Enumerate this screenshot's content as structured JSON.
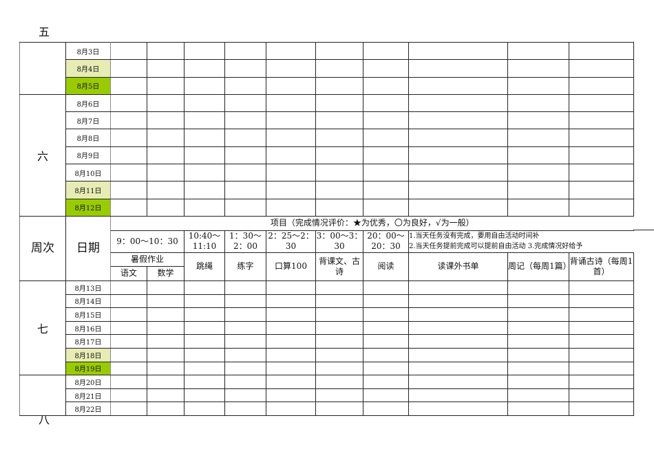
{
  "outside_labels": {
    "week5": "五",
    "week8": "八"
  },
  "header": {
    "week": "周次",
    "date": "日期",
    "project": "项目（完成情况评价：★为优秀，〇为良好，√为一般）",
    "times": [
      "9：00～10：30",
      "10:40～11:10",
      "1：30～2：00",
      "2：25～2：30",
      "3：00～3：30",
      "20：00～20：30"
    ],
    "notes": [
      "1.当天任务没有完成，要用自由活动时间补",
      "2.当天任务提前完成可以提前自由活动  3.完成情况好给予"
    ],
    "homework": "暑假作业",
    "chinese": "语文",
    "math": "数学",
    "items": [
      "跳绳",
      "练字",
      "口算100",
      "背课文、古诗",
      "阅读",
      "读课外书单",
      "周记（每周1篇）",
      "背诵古诗（每周1首）"
    ]
  },
  "weeks_top": [
    {
      "label": "",
      "dates": [
        [
          "8月3日",
          0
        ],
        [
          "8月4日",
          1
        ],
        [
          "8月5日",
          2
        ]
      ]
    },
    {
      "label": "六",
      "dates": [
        [
          "8月6日",
          0
        ],
        [
          "8月7日",
          0
        ],
        [
          "8月8日",
          0
        ],
        [
          "8月9日",
          0
        ],
        [
          "8月10日",
          0
        ],
        [
          "8月11日",
          1
        ],
        [
          "8月12日",
          2
        ]
      ]
    }
  ],
  "weeks_bottom": [
    {
      "label": "七",
      "dates": [
        [
          "8月13日",
          0
        ],
        [
          "8月14日",
          0
        ],
        [
          "8月15日",
          0
        ],
        [
          "8月16日",
          0
        ],
        [
          "8月17日",
          0
        ],
        [
          "8月18日",
          1
        ],
        [
          "8月19日",
          2
        ]
      ]
    },
    {
      "label": "",
      "dates": [
        [
          "8月20日",
          0
        ],
        [
          "8月21日",
          0
        ],
        [
          "8月22日",
          0
        ]
      ]
    }
  ],
  "colors": {
    "weekend_sat": "#e6ecb3",
    "weekend_sun": "#99cc00"
  }
}
